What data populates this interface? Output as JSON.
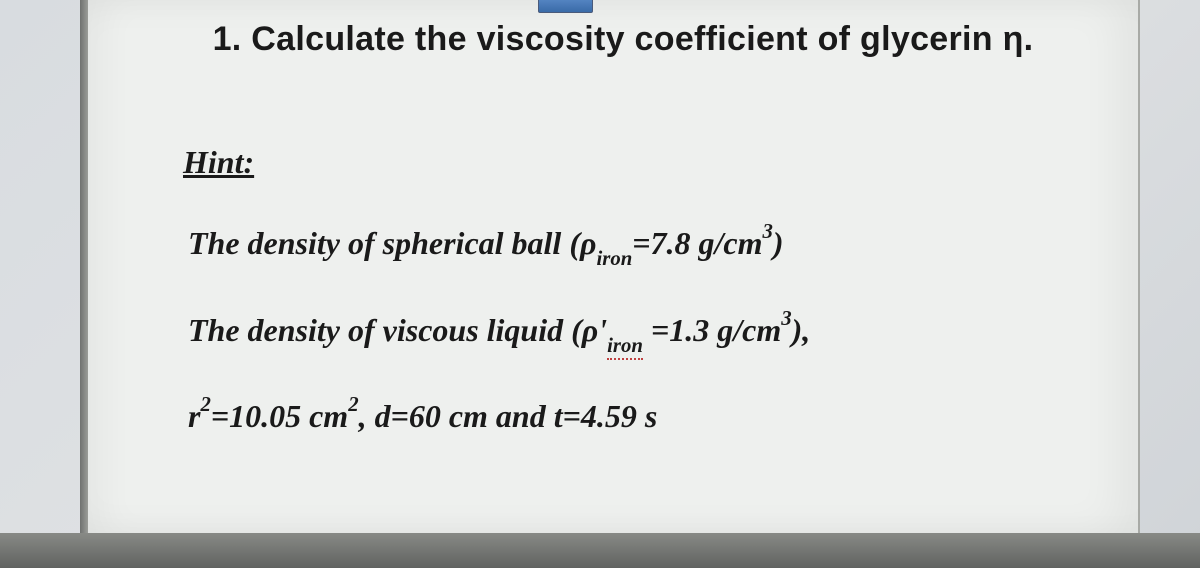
{
  "document": {
    "background_color": "#eef0ee",
    "outer_background": "#d8dce0",
    "text_color": "#1a1a1a",
    "question_fontsize": 34,
    "hint_fontsize": 32,
    "badge_colors": [
      "#5b8cc9",
      "#3a6ba8"
    ]
  },
  "question": {
    "number": "1",
    "text": "Calculate the viscosity coefficient of glycerin η."
  },
  "hint": {
    "label": "Hint:",
    "lines": {
      "density_ball": {
        "prefix": "The density of spherical ball (ρ",
        "subscript": "iron",
        "middle": "=7.8 g/cm",
        "superscript": "3",
        "suffix": ")"
      },
      "density_liquid": {
        "prefix": "The density of viscous liquid (ρ'",
        "subscript": "iron",
        "middle": " =1.3 g/cm",
        "superscript": "3",
        "suffix": "),"
      },
      "params": {
        "r_var": "r",
        "r_sup": "2",
        "r_val": "=10.05 cm",
        "r_unit_sup": "2",
        "rest": ", d=60 cm and t=4.59 s"
      }
    }
  }
}
